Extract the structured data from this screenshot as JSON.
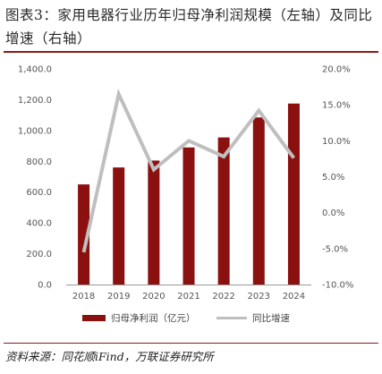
{
  "title": "图表3：家用电器行业历年归母净利润规模（左轴）及同比增速（右轴）",
  "source": "资料来源：同花顺iFind，万联证券研究所",
  "colors": {
    "bar": "#8b1010",
    "line": "#bfbfbf",
    "rule": "#8b1a1a"
  },
  "chart_data": {
    "type": "bar",
    "categories": [
      "2018",
      "2019",
      "2020",
      "2021",
      "2022",
      "2023",
      "2024"
    ],
    "series": [
      {
        "name": "归母净利润（亿元）",
        "type": "bar",
        "axis": "left",
        "values": [
          650,
          760,
          805,
          890,
          955,
          1085,
          1175
        ]
      },
      {
        "name": "同比增速",
        "type": "line",
        "axis": "right",
        "values": [
          -5.5,
          16.5,
          6.0,
          10.0,
          7.8,
          14.2,
          7.6
        ]
      }
    ],
    "y_left": {
      "ticks": [
        "0.0",
        "200.0",
        "400.0",
        "600.0",
        "800.0",
        "1,000.0",
        "1,200.0",
        "1,400.0"
      ],
      "lim": [
        0,
        1400
      ]
    },
    "y_right": {
      "ticks": [
        "-10.0%",
        "-5.0%",
        "0.0%",
        "5.0%",
        "10.0%",
        "15.0%",
        "20.0%"
      ],
      "lim": [
        -10,
        20
      ]
    },
    "grid": false,
    "legend_position": "bottom"
  }
}
